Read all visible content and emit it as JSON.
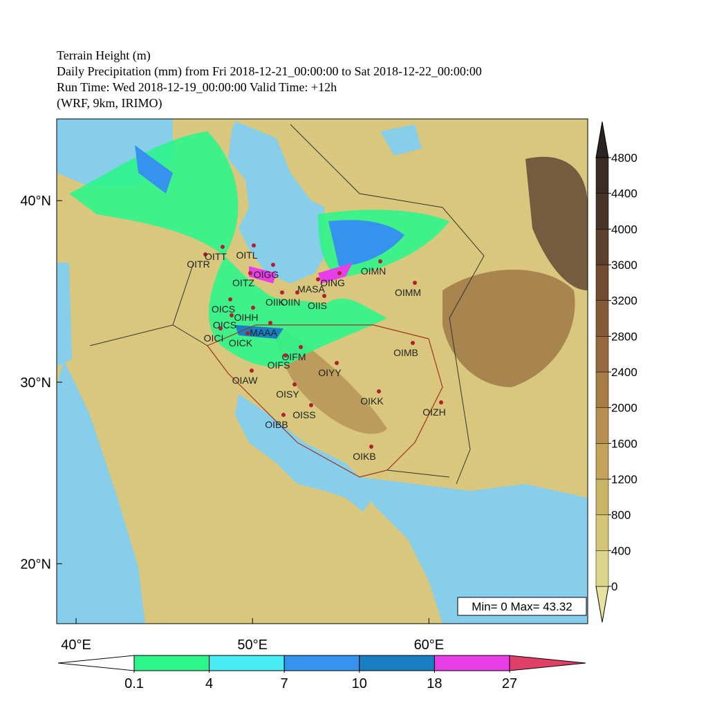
{
  "header": {
    "lines": [
      "Terrain Height (m)",
      "Daily Precipitation (mm) from Fri 2018-12-21_00:00:00 to Sat 2018-12-22_00:00:00",
      "Run Time:  Wed 2018-12-19_00:00:00    Valid Time: +12h",
      "(WRF, 9km, IRIMO)"
    ]
  },
  "map": {
    "lonlim": [
      38.9,
      69.0
    ],
    "latlim": [
      16.7,
      44.5
    ],
    "lat_ticks": [
      {
        "value": 40,
        "label": "40°N"
      },
      {
        "value": 30,
        "label": "30°N"
      },
      {
        "value": 20,
        "label": "20°N"
      }
    ],
    "lon_ticks": [
      {
        "value": 40,
        "label": "40°E"
      },
      {
        "value": 50,
        "label": "50°E"
      },
      {
        "value": 60,
        "label": "60°E"
      }
    ],
    "stations": [
      "OITR",
      "OITT",
      "OITL",
      "OIGG",
      "OITZ",
      "MASA",
      "OING",
      "OIMN",
      "OIMM",
      "OIIK",
      "OIIN",
      "OIIS",
      "OICS",
      "OICS",
      "OIHH",
      "OICI",
      "OICK",
      "MAAA",
      "OIFM",
      "OIFS",
      "OIYY",
      "OIMB",
      "OIAW",
      "OISY",
      "OIKK",
      "OISS",
      "OIZH",
      "OIBB",
      "OIKB"
    ],
    "minmax": "Min= 0 Max= 43.32"
  },
  "terrain_colorbar": {
    "levels": [
      0,
      400,
      800,
      1200,
      1600,
      2000,
      2400,
      2800,
      3200,
      3600,
      4000,
      4400,
      4800
    ],
    "colors": [
      "#e6e3a0",
      "#dcd58a",
      "#d4c576",
      "#ccb466",
      "#c4a25a",
      "#b88f4e",
      "#a97c46",
      "#98693e",
      "#855a38",
      "#704c32",
      "#5c3f2c",
      "#4a3428",
      "#3a2c24",
      "#2a2420"
    ]
  },
  "precip_colorbar": {
    "levels": [
      0.1,
      4,
      7,
      10,
      18,
      27
    ],
    "colors": [
      "#ffffff",
      "#2ef58a",
      "#48ecf4",
      "#3593ee",
      "#1a7fc2",
      "#e83ee8",
      "#e04068"
    ]
  }
}
